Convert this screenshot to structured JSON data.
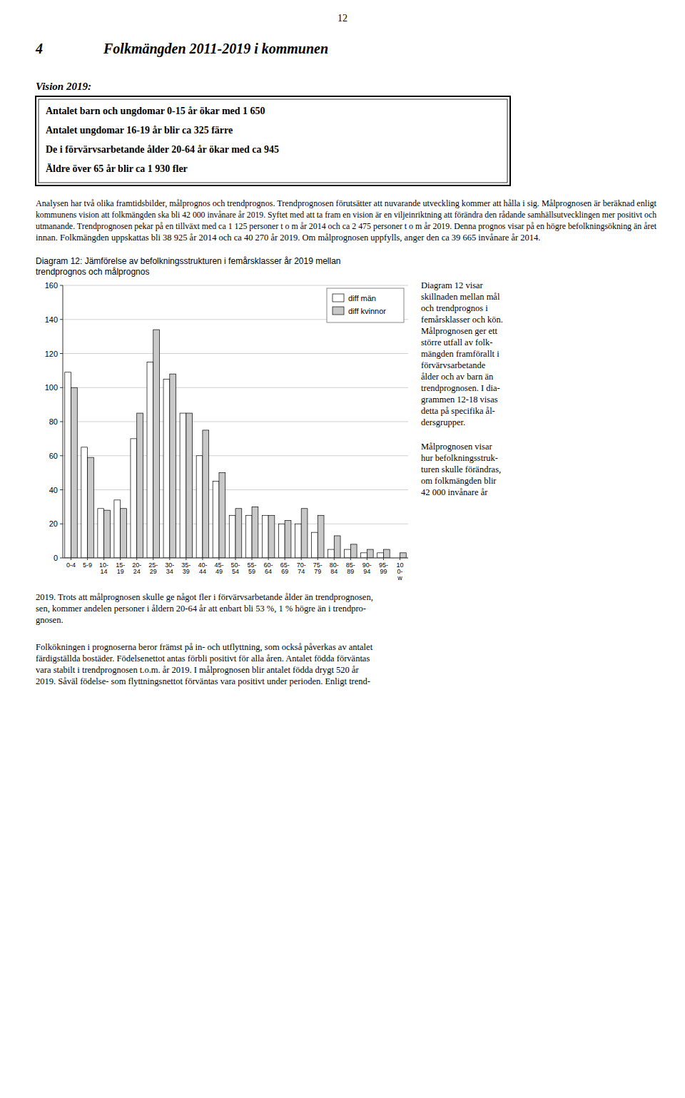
{
  "chart_data": {
    "type": "bar",
    "title": "Diagram 12: Jämförelse av befolkningsstrukturen i femårsklasser år 2019 mellan\ntrendprognos och målprognos",
    "categories": [
      "0-4",
      "5-9",
      "10-\n14",
      "15-\n19",
      "20-\n24",
      "25-\n29",
      "30-\n34",
      "35-\n39",
      "40-\n44",
      "45-\n49",
      "50-\n54",
      "55-\n59",
      "60-\n64",
      "65-\n69",
      "70-\n74",
      "75-\n79",
      "80-\n84",
      "85-\n89",
      "90-\n94",
      "95-\n99",
      "10\n0-\nw"
    ],
    "series": [
      {
        "name": "diff män",
        "color": "#ffffff",
        "values": [
          109,
          65,
          29,
          34,
          70,
          115,
          105,
          85,
          60,
          45,
          25,
          25,
          25,
          20,
          20,
          15,
          5,
          5,
          3,
          3,
          0
        ]
      },
      {
        "name": "diff kvinnor",
        "color": "#c8c8c8",
        "values": [
          100,
          59,
          28,
          29,
          85,
          134,
          108,
          85,
          75,
          50,
          29,
          30,
          25,
          22,
          29,
          25,
          13,
          8,
          5,
          5,
          3
        ]
      }
    ],
    "ylim": [
      0,
      160
    ],
    "yticks": [
      0,
      20,
      40,
      60,
      80,
      100,
      120,
      140,
      160
    ],
    "grid": true,
    "legend": "upper-right"
  },
  "page": {
    "page_number": "12",
    "chapter_number": "4",
    "chapter_title": "Folkmängden 2011-2019 i kommunen",
    "vision_label": "Vision 2019:",
    "vision_box_lines": [
      "Antalet barn och ungdomar 0-15 år ökar med 1 650",
      "Antalet ungdomar 16-19 år blir ca 325 färre",
      "De i förvärvsarbetande ålder 20-64 år ökar med ca 945",
      "Äldre över 65 år blir ca 1 930 fler"
    ],
    "paragraph": [
      "Analysen har två olika framtidsbilder, målprognos och trendprognos. Trendprognosen förutsätter att nuvarande utveckling kommer att hålla i sig. Målprognosen är beräknad enligt",
      "kommunens vision att folkmängden ska bli 42 000 invånare år 2019. Syftet med att ta fram en vision är en viljeinriktning att förändra den rådande samhällsutvecklingen mer positivt och",
      "utmanande. Trendprognosen pekar på en tillväxt med ca 1 125 personer t o m år 2014 och ca 2 475 personer t o m år 2019. Denna prognos visar på en högre befolkningsökning än året",
      "innan. Folkmängden uppskattas bli 38 925 år 2014 och ca 40 270 år 2019. Om målprognosen uppfylls, anger den ca 39 665 invånare år 2014."
    ],
    "right_column_1": [
      "Diagram 12 visar",
      "skillnaden mellan mål",
      "och trendprognos i",
      "femårsklasser och kön.",
      "Målprognosen ger ett",
      "större utfall av folk-",
      "mängden framförallt i",
      "förvärvsarbetande",
      "ålder och av barn än",
      "trendprognosen. I dia-",
      "grammen 12-18 visas",
      "detta på specifika ål-",
      "dersgrupper."
    ],
    "right_column_2": [
      "Målprognosen visar",
      "hur befolkningsstruk-",
      "turen skulle förändras,",
      "om folkmängden blir",
      "42 000 invånare år"
    ],
    "continuation": [
      "2019. Trots att målprognosen skulle ge något fler i förvärvsarbetande ålder än trendprognosen,",
      "sen, kommer andelen personer i åldern 20-64 år att enbart bli 53 %, 1 % högre än i trendpro-",
      "gnosen."
    ],
    "bottom": [
      "Folkökningen i prognoserna beror främst på in- och utflyttning, som också påverkas av antalet",
      "färdigställda bostäder. Födelsenettot antas förbli positivt för alla åren. Antalet födda förväntas",
      "vara stabilt i trendprognosen t.o.m. år 2019. I målprognosen blir antalet födda drygt 520 år",
      "2019. Såväl födelse- som flyttningsnettot förväntas vara positivt under perioden. Enligt trend-"
    ]
  }
}
